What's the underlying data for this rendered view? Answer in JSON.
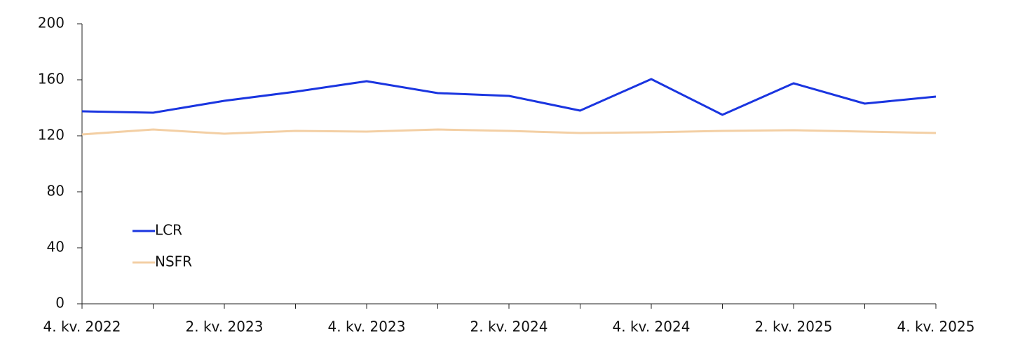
{
  "chart_data": {
    "type": "line",
    "categories": [
      "4. kv. 2022",
      null,
      "2. kv. 2023",
      null,
      "4. kv. 2023",
      null,
      "2. kv. 2024",
      null,
      "4. kv. 2024",
      null,
      "2. kv. 2025",
      null,
      "4. kv. 2025"
    ],
    "series": [
      {
        "name": "LCR",
        "color": "#1a35e0",
        "values": [
          137.5,
          136.5,
          145,
          151.5,
          159,
          150.5,
          148.5,
          138,
          160.5,
          135,
          157.5,
          143,
          148
        ]
      },
      {
        "name": "NSFR",
        "color": "#f3cfa4",
        "values": [
          121,
          124.5,
          121.5,
          123.5,
          123,
          124.5,
          123.5,
          122,
          122.5,
          123.5,
          124,
          123,
          122
        ]
      }
    ],
    "ylim": [
      0,
      200
    ],
    "yticks": [
      0,
      40,
      80,
      120,
      160,
      200
    ],
    "grid": false,
    "legend": "lower left"
  }
}
